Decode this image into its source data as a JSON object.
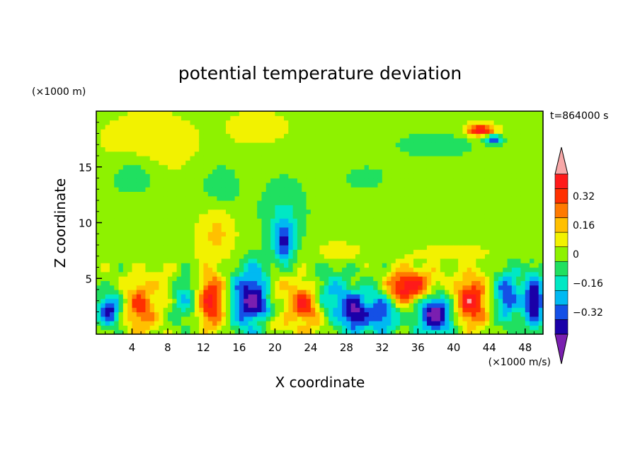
{
  "chart_data": {
    "type": "heatmap",
    "title": "potential temperature deviation",
    "time_label": "t=864000 s",
    "xlabel": "X coordinate",
    "ylabel": "Z coordinate",
    "x_unit": "(×1000 m/s)",
    "y_unit": "(×1000 m)",
    "xlim": [
      0,
      50
    ],
    "ylim": [
      0,
      20
    ],
    "x_ticks": [
      "4",
      "8",
      "12",
      "16",
      "20",
      "24",
      "28",
      "32",
      "36",
      "40",
      "44",
      "48"
    ],
    "y_ticks": [
      "5",
      "10",
      "15"
    ],
    "colorbar": {
      "levels": [
        -0.48,
        -0.4,
        -0.32,
        -0.24,
        -0.16,
        -0.08,
        0,
        0.08,
        0.16,
        0.24,
        0.32,
        0.4,
        0.48
      ],
      "colors": [
        "#7a1fb0",
        "#1a00a8",
        "#1450e6",
        "#00b9f2",
        "#00e8c4",
        "#20e060",
        "#8ef200",
        "#f2f200",
        "#ffc000",
        "#ff7a00",
        "#ff3000",
        "#ff1a1a",
        "#f7a8a8"
      ],
      "extend": "both",
      "tick_labels": [
        "0.32",
        "0.16",
        "0",
        "−0.16",
        "−0.32"
      ],
      "tick_values": [
        0.32,
        0.16,
        0,
        -0.16,
        -0.32
      ]
    },
    "field_features": [
      {
        "x": 6,
        "z": 17,
        "rx": 5,
        "rz": 2.6,
        "value": 0.1
      },
      {
        "x": 4,
        "z": 14,
        "rx": 3,
        "rz": 2,
        "value": -0.08
      },
      {
        "x": 14,
        "z": 13,
        "rx": 2.5,
        "rz": 2.5,
        "value": -0.1
      },
      {
        "x": 21,
        "z": 11,
        "rx": 3,
        "rz": 3.5,
        "value": -0.12
      },
      {
        "x": 13.5,
        "z": 9,
        "rx": 2,
        "rz": 2.5,
        "value": 0.14
      },
      {
        "x": 21,
        "z": 8.4,
        "rx": 1.1,
        "rz": 1.8,
        "value": -0.4
      },
      {
        "x": 30,
        "z": 14,
        "rx": 4,
        "rz": 1.8,
        "value": -0.06
      },
      {
        "x": 38,
        "z": 17,
        "rx": 6,
        "rz": 1.6,
        "value": -0.08
      },
      {
        "x": 18,
        "z": 18.5,
        "rx": 3,
        "rz": 1.3,
        "value": 0.1
      },
      {
        "x": 43,
        "z": 18.3,
        "rx": 1.6,
        "rz": 0.5,
        "value": 0.46
      },
      {
        "x": 44.5,
        "z": 17.5,
        "rx": 0.9,
        "rz": 0.4,
        "value": -0.45
      },
      {
        "x": 46.5,
        "z": 13,
        "rx": 4,
        "rz": 3,
        "value": 0.01
      },
      {
        "x": 27,
        "z": 7.4,
        "rx": 2,
        "rz": 0.7,
        "value": 0.14
      },
      {
        "x": 40,
        "z": 7.3,
        "rx": 3,
        "rz": 0.6,
        "value": 0.12
      },
      {
        "x": 1.5,
        "z": 2.2,
        "rx": 1.3,
        "rz": 1.4,
        "value": -0.42
      },
      {
        "x": 5,
        "z": 2.5,
        "rx": 1.8,
        "rz": 2.4,
        "value": 0.3
      },
      {
        "x": 7.5,
        "z": 4.5,
        "rx": 1.6,
        "rz": 1.3,
        "value": 0.1
      },
      {
        "x": 10,
        "z": 3.2,
        "rx": 1.4,
        "rz": 2,
        "value": -0.2
      },
      {
        "x": 13,
        "z": 3,
        "rx": 1.6,
        "rz": 2.4,
        "value": 0.42
      },
      {
        "x": 17.5,
        "z": 3,
        "rx": 2.4,
        "rz": 3,
        "value": -0.48
      },
      {
        "x": 20.5,
        "z": 4.2,
        "rx": 1.4,
        "rz": 1.5,
        "value": 0.08
      },
      {
        "x": 23.5,
        "z": 2.5,
        "rx": 2,
        "rz": 2,
        "value": 0.4
      },
      {
        "x": 26.5,
        "z": 3.5,
        "rx": 2,
        "rz": 2.4,
        "value": -0.2
      },
      {
        "x": 29,
        "z": 2,
        "rx": 1.7,
        "rz": 1.8,
        "value": -0.48
      },
      {
        "x": 32,
        "z": 2.5,
        "rx": 1.7,
        "rz": 2.4,
        "value": -0.42
      },
      {
        "x": 35,
        "z": 4.2,
        "rx": 3,
        "rz": 1.6,
        "value": 0.44
      },
      {
        "x": 38,
        "z": 1.8,
        "rx": 2.2,
        "rz": 1.8,
        "value": -0.48
      },
      {
        "x": 42,
        "z": 3,
        "rx": 1.8,
        "rz": 2.2,
        "value": 0.42
      },
      {
        "x": 46,
        "z": 3.5,
        "rx": 1.5,
        "rz": 2.2,
        "value": -0.35
      },
      {
        "x": 49,
        "z": 3,
        "rx": 1.2,
        "rz": 2.5,
        "value": -0.45
      },
      {
        "x": 21,
        "z": 1,
        "rx": 3,
        "rz": 0.8,
        "value": 0.1
      }
    ]
  }
}
